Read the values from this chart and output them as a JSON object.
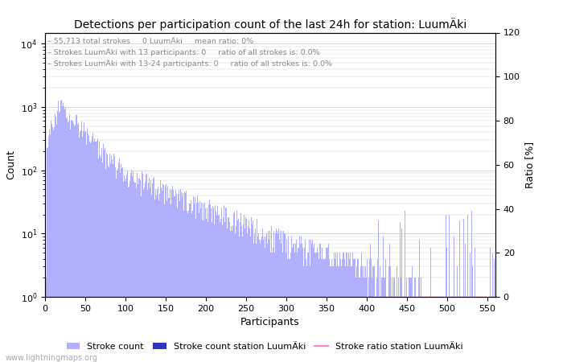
{
  "title": "Detections per participation count of the last 24h for station: LuumÄki",
  "annotation_lines": [
    "55,713 total strokes     0 LuumÄki     mean ratio: 0%",
    "Strokes LuumÄki with 13 participants: 0     ratio of all strokes is: 0.0%",
    "Strokes LuumÄki with 13-24 participants: 0     ratio of all strokes is: 0.0%"
  ],
  "xlabel": "Participants",
  "ylabel_left": "Count",
  "ylabel_right": "Ratio [%]",
  "xlim": [
    0,
    560
  ],
  "ylim_left": [
    1,
    15000
  ],
  "ylim_right": [
    0,
    120
  ],
  "bar_color": "#b0b0ff",
  "station_bar_color": "#3333bb",
  "ratio_line_color": "#ff88cc",
  "legend_labels": [
    "Stroke count",
    "Stroke count station LuumÄki",
    "Stroke ratio station LuumÄki"
  ],
  "watermark": "www.lightningmaps.org",
  "total_participants": 560,
  "grid_color": "#cccccc",
  "background_color": "#ffffff",
  "yticks_left": [
    1,
    10,
    100,
    1000,
    10000
  ],
  "yticks_right": [
    0,
    20,
    40,
    60,
    80,
    100,
    120
  ],
  "xticks": [
    0,
    50,
    100,
    150,
    200,
    250,
    300,
    350,
    400,
    450,
    500,
    550
  ]
}
